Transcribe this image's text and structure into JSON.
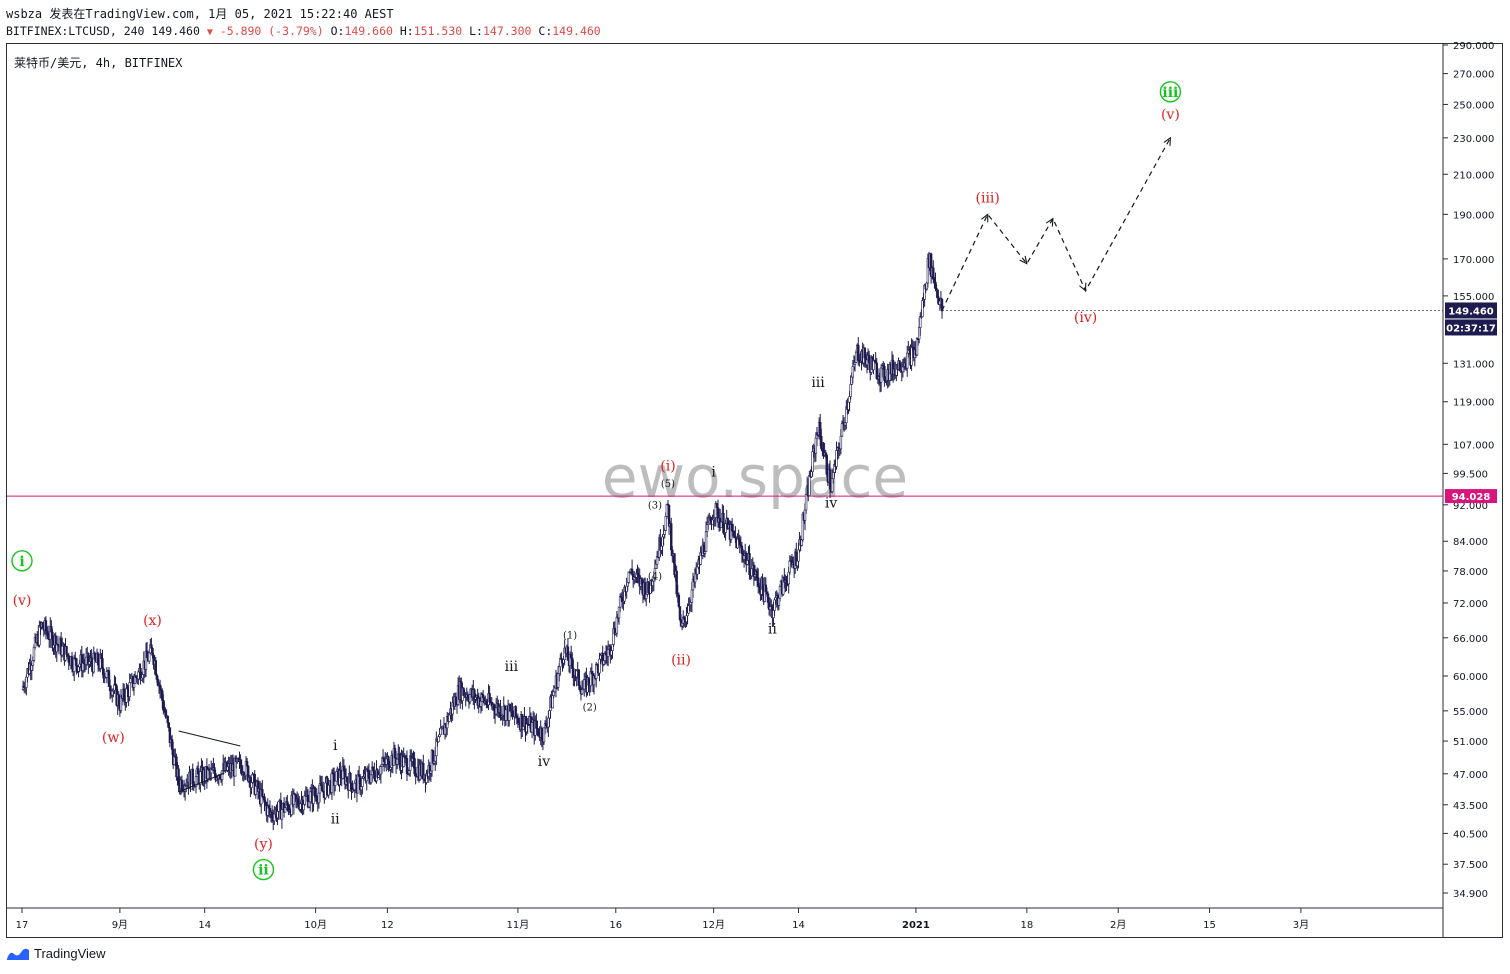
{
  "header": {
    "line1": "wsbza 发表在TradingView.com, 1月 05, 2021 15:22:40 AEST",
    "ticker": "BITFINEX:LTCUSD, 240",
    "last": "149.460",
    "change": "-5.890 (-3.79%)",
    "o_label": "O:",
    "o_value": "149.660",
    "h_label": "H:",
    "h_value": "151.530",
    "l_label": "L:",
    "l_value": "147.300",
    "c_label": "C:",
    "c_value": "149.460"
  },
  "symbol_label": "莱特币/美元, 4h, BITFINEX",
  "watermark": "ewo.space",
  "footer": {
    "brand": "TradingView"
  },
  "colors": {
    "candle": "#1d1b4f",
    "wave_red": "#e02020",
    "wave_green": "#18c21e",
    "level_line": "#d8157c",
    "price_badge": "#1d1b4f",
    "watermark": "#bdbdbd"
  },
  "chart_data": {
    "type": "candlestick",
    "title": "莱特币/美元, 4h, BITFINEX",
    "y_scale": "log",
    "y_ticks": [
      "290.000",
      "270.000",
      "250.000",
      "230.000",
      "210.000",
      "190.000",
      "170.000",
      "155.000",
      "131.000",
      "119.000",
      "107.000",
      "99.500",
      "92.000",
      "84.000",
      "78.000",
      "72.000",
      "66.000",
      "60.000",
      "55.000",
      "51.000",
      "47.000",
      "43.500",
      "40.500",
      "37.500",
      "34.900"
    ],
    "x_ticks": [
      "17",
      "9月",
      "14",
      "10月",
      "12",
      "11月",
      "16",
      "12月",
      "14",
      "2021",
      "18",
      "2月",
      "15",
      "3月"
    ],
    "last_price": "149.460",
    "countdown": "02:37:17",
    "level": {
      "value": 94.028,
      "label": "94.028"
    },
    "price_path": [
      {
        "t": "Aug 17",
        "p": 58
      },
      {
        "t": "Aug 20",
        "p": 68
      },
      {
        "t": "Aug 25",
        "p": 62
      },
      {
        "t": "Aug 29",
        "p": 62
      },
      {
        "t": "Sep 1",
        "p": 56
      },
      {
        "t": "Sep 6",
        "p": 64
      },
      {
        "t": "Sep 10",
        "p": 46
      },
      {
        "t": "Sep 20",
        "p": 48
      },
      {
        "t": "Sep 24",
        "p": 42.5
      },
      {
        "t": "Oct 2",
        "p": 45
      },
      {
        "t": "Oct 5",
        "p": 47
      },
      {
        "t": "Oct 7",
        "p": 45.5
      },
      {
        "t": "Oct 13",
        "p": 49
      },
      {
        "t": "Oct 18",
        "p": 47
      },
      {
        "t": "Oct 23",
        "p": 58
      },
      {
        "t": "Oct 30",
        "p": 55
      },
      {
        "t": "Nov 5",
        "p": 52
      },
      {
        "t": "Nov 8",
        "p": 64
      },
      {
        "t": "Nov 11",
        "p": 58
      },
      {
        "t": "Nov 15",
        "p": 64
      },
      {
        "t": "Nov 18",
        "p": 78
      },
      {
        "t": "Nov 21",
        "p": 74
      },
      {
        "t": "Nov 24",
        "p": 91
      },
      {
        "t": "Nov 26",
        "p": 67
      },
      {
        "t": "Dec 1",
        "p": 91
      },
      {
        "t": "Dec 5",
        "p": 83
      },
      {
        "t": "Dec 10",
        "p": 71
      },
      {
        "t": "Dec 14",
        "p": 82
      },
      {
        "t": "Dec 17",
        "p": 112
      },
      {
        "t": "Dec 19",
        "p": 96
      },
      {
        "t": "Dec 23",
        "p": 135
      },
      {
        "t": "Dec 27",
        "p": 127
      },
      {
        "t": "Jan 1",
        "p": 135
      },
      {
        "t": "Jan 3",
        "p": 170
      },
      {
        "t": "Jan 5",
        "p": 149.46
      }
    ],
    "projection": [
      {
        "t": "Jan 5",
        "p": 149.46
      },
      {
        "t": "Jan 12",
        "p": 190
      },
      {
        "t": "Jan 18",
        "p": 168
      },
      {
        "t": "Jan 22",
        "p": 188
      },
      {
        "t": "Jan 27",
        "p": 157
      },
      {
        "t": "Feb 9",
        "p": 230
      }
    ],
    "wave_labels": [
      {
        "text": "i",
        "color": "green",
        "circled": true,
        "t": "Aug 17",
        "p": 80
      },
      {
        "text": "(v)",
        "color": "red",
        "t": "Aug 17",
        "p": 72.5
      },
      {
        "text": "(w)",
        "color": "red",
        "t": "Aug 31",
        "p": 51.5
      },
      {
        "text": "(x)",
        "color": "red",
        "t": "Sep 6",
        "p": 69
      },
      {
        "text": "(y)",
        "color": "red",
        "t": "Sep 23",
        "p": 39.5
      },
      {
        "text": "ii",
        "color": "green",
        "circled": true,
        "t": "Sep 23",
        "p": 37
      },
      {
        "text": "i",
        "color": "black",
        "t": "Oct 4",
        "p": 50.5
      },
      {
        "text": "ii",
        "color": "black",
        "t": "Oct 4",
        "p": 42
      },
      {
        "text": "iii",
        "color": "black",
        "t": "Oct 31",
        "p": 61.5
      },
      {
        "text": "iv",
        "color": "black",
        "t": "Nov 5",
        "p": 48.5
      },
      {
        "text": "(1)",
        "color": "black",
        "small": true,
        "t": "Nov 9",
        "p": 66.5
      },
      {
        "text": "(2)",
        "color": "black",
        "small": true,
        "t": "Nov 12",
        "p": 55.5
      },
      {
        "text": "(3)",
        "color": "black",
        "small": true,
        "t": "Nov 22",
        "p": 92
      },
      {
        "text": "(4)",
        "color": "black",
        "small": true,
        "t": "Nov 22",
        "p": 77
      },
      {
        "text": "(5)",
        "color": "black",
        "small": true,
        "t": "Nov 24",
        "p": 97
      },
      {
        "text": "(i)",
        "color": "red",
        "t": "Nov 24",
        "p": 101.5
      },
      {
        "text": "(ii)",
        "color": "red",
        "t": "Nov 26",
        "p": 62.5
      },
      {
        "text": "i",
        "color": "black",
        "t": "Dec 1",
        "p": 100
      },
      {
        "text": "ii",
        "color": "black",
        "t": "Dec 10",
        "p": 67.5
      },
      {
        "text": "iii",
        "color": "black",
        "t": "Dec 17",
        "p": 125
      },
      {
        "text": "iv",
        "color": "black",
        "t": "Dec 19",
        "p": 92.5
      },
      {
        "text": "(iii)",
        "color": "red",
        "t": "Jan 12",
        "p": 198
      },
      {
        "text": "(iv)",
        "color": "red",
        "t": "Jan 27",
        "p": 147
      },
      {
        "text": "(v)",
        "color": "red",
        "t": "Feb 9",
        "p": 244
      },
      {
        "text": "iii",
        "color": "green",
        "circled": true,
        "t": "Feb 9",
        "p": 258
      }
    ]
  }
}
